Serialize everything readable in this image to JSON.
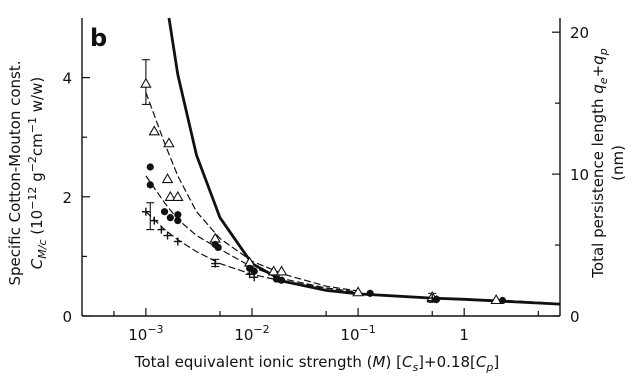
{
  "chart_data": {
    "type": "scatter",
    "panel_label": "b",
    "x_axis": {
      "scale": "log",
      "xlim": [
        0.00025,
        8
      ],
      "title_parts": [
        "Total equivalent ionic strength (",
        "M",
        ") [",
        "C",
        "s",
        "]+0.18[",
        "C",
        "p",
        "]"
      ],
      "ticks": [
        {
          "value": 0.001,
          "base": "10",
          "exp": "−3"
        },
        {
          "value": 0.01,
          "base": "10",
          "exp": "−2"
        },
        {
          "value": 0.1,
          "base": "10",
          "exp": "−1"
        },
        {
          "value": 1,
          "base": "1",
          "exp": ""
        }
      ],
      "minor_ticks": [
        0.0005,
        0.005,
        0.05,
        0.5,
        5
      ]
    },
    "y_left": {
      "ylim": [
        0,
        5
      ],
      "title_line1": "Specific Cotton-Mouton const.",
      "title_line2_parts": [
        "C",
        "M/c",
        " (10",
        "−12",
        " g",
        "−2",
        "cm",
        "−1",
        " w/w)"
      ],
      "ticks": [
        0,
        2,
        4
      ],
      "minor_ticks": [
        1,
        3
      ]
    },
    "y_right": {
      "ylim": [
        0,
        21
      ],
      "title_line1_parts": [
        "Total persistence length ",
        "q",
        "e",
        "+",
        "q",
        "p"
      ],
      "title_line2": "(nm)",
      "ticks": [
        0,
        10,
        20
      ],
      "minor_ticks": [
        5,
        15
      ]
    },
    "series": [
      {
        "marker": "triangle-open",
        "points": [
          [
            0.001,
            3.9
          ],
          [
            0.0012,
            3.1
          ],
          [
            0.00165,
            2.9
          ],
          [
            0.0016,
            2.3
          ],
          [
            0.0017,
            2.0
          ],
          [
            0.002,
            2.0
          ],
          [
            0.0045,
            1.3
          ],
          [
            0.0095,
            0.9
          ],
          [
            0.016,
            0.75
          ],
          [
            0.019,
            0.75
          ],
          [
            0.1,
            0.4
          ],
          [
            0.5,
            0.3
          ],
          [
            0.5,
            0.32
          ],
          [
            2.0,
            0.27
          ]
        ],
        "fit": [
          [
            0.001,
            3.75
          ],
          [
            0.0015,
            2.9
          ],
          [
            0.002,
            2.35
          ],
          [
            0.003,
            1.75
          ],
          [
            0.005,
            1.3
          ],
          [
            0.01,
            0.92
          ],
          [
            0.02,
            0.7
          ],
          [
            0.05,
            0.5
          ],
          [
            0.1,
            0.42
          ]
        ]
      },
      {
        "marker": "circle-filled",
        "points": [
          [
            0.0011,
            2.5
          ],
          [
            0.0011,
            2.2
          ],
          [
            0.0015,
            1.75
          ],
          [
            0.0017,
            1.65
          ],
          [
            0.002,
            1.6
          ],
          [
            0.002,
            1.7
          ],
          [
            0.0045,
            1.2
          ],
          [
            0.0048,
            1.15
          ],
          [
            0.0095,
            0.8
          ],
          [
            0.0105,
            0.75
          ],
          [
            0.017,
            0.62
          ],
          [
            0.019,
            0.6
          ],
          [
            0.13,
            0.38
          ],
          [
            0.55,
            0.28
          ],
          [
            2.3,
            0.26
          ]
        ],
        "fit": [
          [
            0.001,
            2.35
          ],
          [
            0.0015,
            1.9
          ],
          [
            0.002,
            1.62
          ],
          [
            0.003,
            1.35
          ],
          [
            0.005,
            1.12
          ],
          [
            0.01,
            0.82
          ],
          [
            0.02,
            0.62
          ],
          [
            0.05,
            0.47
          ],
          [
            0.1,
            0.4
          ]
        ]
      },
      {
        "marker": "plus",
        "points": [
          [
            0.001,
            1.75
          ],
          [
            0.0012,
            1.6
          ],
          [
            0.0014,
            1.45
          ],
          [
            0.0016,
            1.35
          ],
          [
            0.002,
            1.25
          ],
          [
            0.0045,
            0.88
          ],
          [
            0.0095,
            0.7
          ],
          [
            0.0105,
            0.65
          ],
          [
            0.018,
            0.62
          ],
          [
            0.5,
            0.3
          ],
          [
            0.55,
            0.28
          ]
        ],
        "fit": [
          [
            0.001,
            1.75
          ],
          [
            0.0015,
            1.45
          ],
          [
            0.002,
            1.28
          ],
          [
            0.003,
            1.08
          ],
          [
            0.005,
            0.88
          ],
          [
            0.01,
            0.7
          ],
          [
            0.02,
            0.58
          ],
          [
            0.05,
            0.47
          ],
          [
            0.1,
            0.4
          ]
        ]
      }
    ],
    "error_bars": [
      {
        "x": 0.001,
        "low": 3.55,
        "high": 4.3
      },
      {
        "x": 0.0011,
        "low": 1.45,
        "high": 1.9
      },
      {
        "x": 0.0045,
        "low": 0.83,
        "high": 0.95
      },
      {
        "x": 0.5,
        "low": 0.23,
        "high": 0.38
      }
    ],
    "theory_curve": [
      [
        0.00165,
        5.0
      ],
      [
        0.002,
        4.05
      ],
      [
        0.003,
        2.7
      ],
      [
        0.005,
        1.65
      ],
      [
        0.01,
        0.88
      ],
      [
        0.02,
        0.58
      ],
      [
        0.05,
        0.43
      ],
      [
        0.1,
        0.37
      ],
      [
        0.5,
        0.3
      ],
      [
        1,
        0.28
      ],
      [
        8,
        0.2
      ]
    ],
    "common_tail": [
      [
        0.1,
        0.38
      ],
      [
        0.5,
        0.3
      ],
      [
        2.5,
        0.26
      ],
      [
        8,
        0.21
      ]
    ]
  }
}
